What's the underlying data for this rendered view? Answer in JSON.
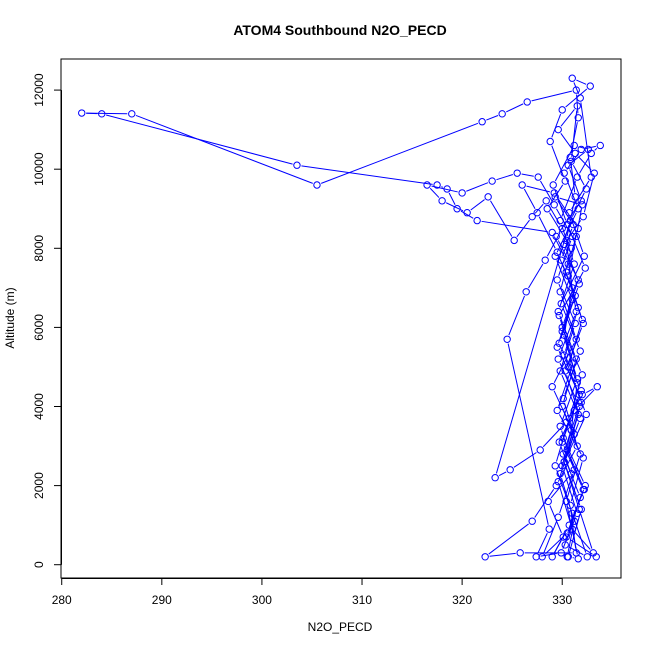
{
  "chart_data": {
    "type": "line",
    "title": "ATOM4 Southbound N2O_PECD",
    "xlabel": "N2O_PECD",
    "ylabel": "Altitude (m)",
    "xlim": [
      280,
      335
    ],
    "ylim": [
      0,
      12500
    ],
    "x_ticks": [
      280,
      290,
      300,
      310,
      320,
      330
    ],
    "y_ticks": [
      0,
      2000,
      4000,
      6000,
      8000,
      10000,
      12000
    ],
    "grid": false,
    "legend": "none",
    "marker": "open-circle",
    "color": "#0000ff",
    "series": [
      {
        "name": "N2O_PECD",
        "points": [
          [
            330.5,
            200
          ],
          [
            331.2,
            1100
          ],
          [
            329.8,
            2300
          ],
          [
            330.9,
            3400
          ],
          [
            331.5,
            4600
          ],
          [
            330.2,
            5800
          ],
          [
            331.0,
            7000
          ],
          [
            330.4,
            8200
          ],
          [
            331.3,
            9300
          ],
          [
            330.8,
            10300
          ],
          [
            331.6,
            11300
          ],
          [
            331.4,
            12000
          ],
          [
            326.5,
            11700
          ],
          [
            324.0,
            11400
          ],
          [
            322.0,
            11200
          ],
          [
            305.5,
            9600
          ],
          [
            287.0,
            11400
          ],
          [
            282.0,
            11420
          ],
          [
            284.0,
            11400
          ],
          [
            303.5,
            10100
          ],
          [
            317.5,
            9600
          ],
          [
            318.5,
            9500
          ],
          [
            319.5,
            9000
          ],
          [
            321.5,
            8700
          ],
          [
            329.0,
            8400
          ],
          [
            330.6,
            7600
          ],
          [
            331.4,
            6400
          ],
          [
            329.6,
            5200
          ],
          [
            331.7,
            4000
          ],
          [
            330.1,
            2800
          ],
          [
            331.8,
            1700
          ],
          [
            330.3,
            500
          ],
          [
            332.5,
            200
          ],
          [
            331.0,
            1300
          ],
          [
            329.3,
            2500
          ],
          [
            330.7,
            3700
          ],
          [
            332.0,
            4800
          ],
          [
            330.0,
            6000
          ],
          [
            331.6,
            7200
          ],
          [
            329.4,
            8300
          ],
          [
            331.9,
            9200
          ],
          [
            330.6,
            10100
          ],
          [
            332.6,
            10500
          ],
          [
            331.2,
            10600
          ],
          [
            329.1,
            9600
          ],
          [
            330.5,
            8600
          ],
          [
            332.3,
            7500
          ],
          [
            329.7,
            6300
          ],
          [
            331.1,
            5100
          ],
          [
            329.5,
            3900
          ],
          [
            332.1,
            2700
          ],
          [
            330.8,
            1500
          ],
          [
            331.4,
            300
          ],
          [
            325.8,
            300
          ],
          [
            322.3,
            200
          ],
          [
            327.0,
            1100
          ],
          [
            329.4,
            2000
          ],
          [
            331.5,
            3000
          ],
          [
            330.1,
            4200
          ],
          [
            331.8,
            5400
          ],
          [
            329.9,
            6600
          ],
          [
            332.2,
            7800
          ],
          [
            330.7,
            8900
          ],
          [
            332.9,
            9800
          ],
          [
            331.8,
            11800
          ],
          [
            331.0,
            12300
          ],
          [
            332.8,
            12100
          ],
          [
            330.0,
            11500
          ],
          [
            328.8,
            10700
          ],
          [
            330.3,
            9700
          ],
          [
            328.5,
            9000
          ],
          [
            330.9,
            8000
          ],
          [
            329.8,
            6900
          ],
          [
            331.4,
            5700
          ],
          [
            329.0,
            4500
          ],
          [
            331.2,
            3300
          ],
          [
            329.6,
            2100
          ],
          [
            331.0,
            900
          ],
          [
            333.1,
            300
          ],
          [
            331.7,
            1400
          ],
          [
            330.2,
            2600
          ],
          [
            332.4,
            3800
          ],
          [
            330.6,
            5000
          ],
          [
            332.0,
            6200
          ],
          [
            330.4,
            7400
          ],
          [
            331.6,
            8500
          ],
          [
            329.2,
            9400
          ],
          [
            326.0,
            9600
          ],
          [
            327.5,
            8900
          ],
          [
            329.5,
            7900
          ],
          [
            331.3,
            6800
          ],
          [
            329.7,
            5600
          ],
          [
            331.9,
            4400
          ],
          [
            330.1,
            3200
          ],
          [
            332.3,
            2000
          ],
          [
            330.5,
            800
          ],
          [
            328.0,
            200
          ],
          [
            329.6,
            1200
          ],
          [
            331.2,
            2400
          ],
          [
            329.8,
            3500
          ],
          [
            331.5,
            4700
          ],
          [
            330.0,
            5900
          ],
          [
            331.7,
            7100
          ],
          [
            330.2,
            8100
          ],
          [
            332.1,
            8800
          ],
          [
            333.2,
            9900
          ],
          [
            331.3,
            10400
          ],
          [
            329.6,
            11000
          ],
          [
            331.5,
            11600
          ],
          [
            330.9,
            10200
          ],
          [
            332.4,
            9500
          ],
          [
            330.8,
            8700
          ],
          [
            323.3,
            2200
          ],
          [
            324.8,
            2400
          ],
          [
            327.8,
            2900
          ],
          [
            330.4,
            3600
          ],
          [
            332.0,
            4300
          ],
          [
            333.5,
            4500
          ],
          [
            331.2,
            3900
          ],
          [
            329.7,
            3100
          ],
          [
            330.9,
            2300
          ],
          [
            328.6,
            1600
          ],
          [
            330.1,
            700
          ],
          [
            329.0,
            200
          ],
          [
            330.7,
            1000
          ],
          [
            332.2,
            1900
          ],
          [
            330.5,
            2900
          ],
          [
            331.9,
            4100
          ],
          [
            330.2,
            5300
          ],
          [
            331.6,
            6500
          ],
          [
            329.9,
            7700
          ],
          [
            331.1,
            8600
          ],
          [
            329.3,
            9300
          ],
          [
            332.0,
            9100
          ],
          [
            331.4,
            8300
          ],
          [
            330.6,
            7300
          ],
          [
            332.1,
            6100
          ],
          [
            330.3,
            4900
          ],
          [
            331.8,
            3700
          ],
          [
            330.0,
            2500
          ],
          [
            331.5,
            1300
          ],
          [
            329.9,
            300
          ],
          [
            327.4,
            200
          ],
          [
            328.7,
            900
          ],
          [
            324.5,
            5700
          ],
          [
            326.4,
            6900
          ],
          [
            328.3,
            7700
          ],
          [
            330.0,
            8500
          ],
          [
            328.4,
            9200
          ],
          [
            327.0,
            8800
          ],
          [
            325.2,
            8200
          ],
          [
            322.6,
            9300
          ],
          [
            320.5,
            8900
          ],
          [
            318.0,
            9200
          ],
          [
            316.5,
            9600
          ],
          [
            320.0,
            9400
          ],
          [
            323.0,
            9700
          ],
          [
            325.5,
            9900
          ],
          [
            327.6,
            9800
          ],
          [
            329.2,
            9100
          ],
          [
            331.0,
            8300
          ],
          [
            329.5,
            7200
          ],
          [
            331.3,
            6100
          ],
          [
            329.8,
            4900
          ],
          [
            331.6,
            3800
          ],
          [
            330.2,
            2600
          ],
          [
            331.9,
            1400
          ],
          [
            330.6,
            200
          ],
          [
            331.6,
            150
          ],
          [
            330.4,
            1600
          ],
          [
            331.8,
            2800
          ],
          [
            330.0,
            4000
          ],
          [
            331.4,
            5200
          ],
          [
            329.6,
            6400
          ],
          [
            331.2,
            7600
          ],
          [
            329.8,
            8700
          ],
          [
            331.5,
            9800
          ],
          [
            332.9,
            10400
          ],
          [
            333.8,
            10600
          ],
          [
            331.9,
            10500
          ],
          [
            330.2,
            9900
          ],
          [
            331.6,
            9000
          ],
          [
            329.3,
            7800
          ],
          [
            331.0,
            6700
          ],
          [
            329.5,
            5500
          ],
          [
            331.7,
            4300
          ],
          [
            330.0,
            3100
          ],
          [
            332.1,
            1900
          ],
          [
            330.4,
            700
          ],
          [
            333.4,
            200
          ]
        ]
      }
    ]
  }
}
